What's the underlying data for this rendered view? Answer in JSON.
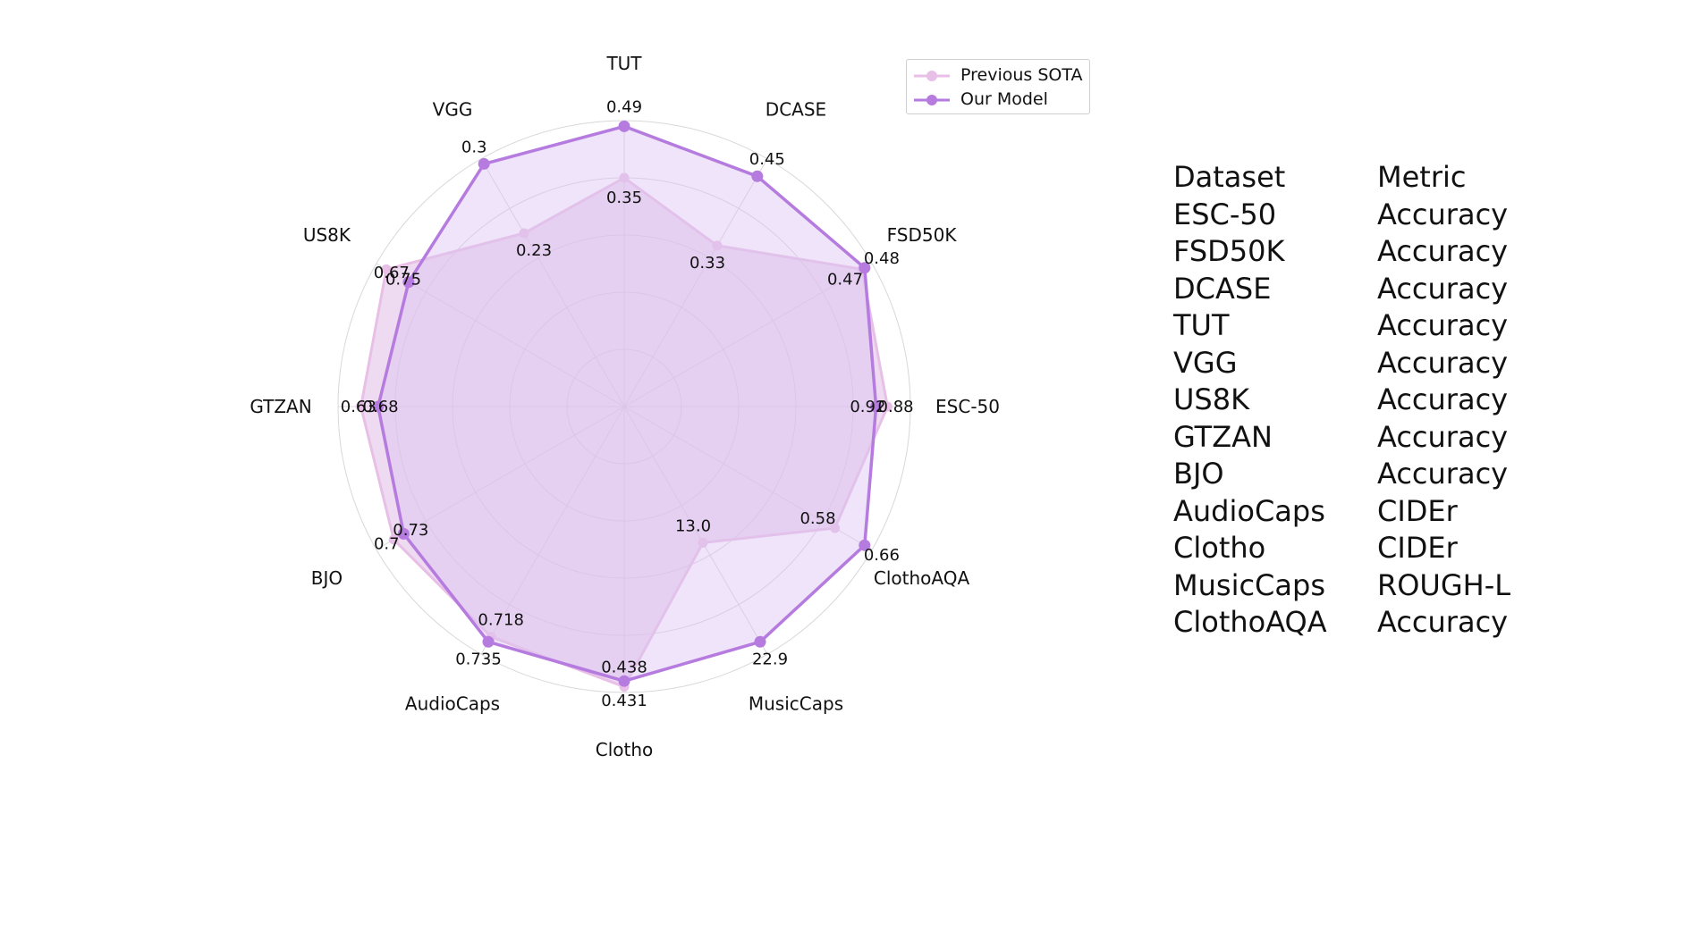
{
  "chart_data": {
    "type": "radar",
    "axes": [
      "ESC-50",
      "FSD50K",
      "DCASE",
      "TUT",
      "VGG",
      "US8K",
      "GTZAN",
      "BJO",
      "AudioCaps",
      "Clotho",
      "MusicCaps",
      "ClothoAQA"
    ],
    "series": [
      {
        "name": "Previous SOTA",
        "color": "#e8bfe6",
        "fill": "#e2bde6",
        "normalized": [
          0.92,
          0.96,
          0.65,
          0.8,
          0.7,
          0.96,
          0.92,
          0.93,
          0.93,
          0.98,
          0.55,
          0.85
        ],
        "labels": [
          "0.92",
          "0.47",
          "0.33",
          "0.35",
          "0.23",
          "0.75",
          "0.68",
          "0.73",
          "0.718",
          "0.438",
          "13.0",
          "0.58"
        ]
      },
      {
        "name": "Our Model",
        "color": "#b57bdf",
        "fill": "#dcc3f2",
        "normalized": [
          0.88,
          0.97,
          0.93,
          0.98,
          0.98,
          0.87,
          0.86,
          0.89,
          0.95,
          0.96,
          0.95,
          0.97
        ],
        "labels": [
          "0.88",
          "0.48",
          "0.45",
          "0.49",
          "0.3",
          "0.67",
          "0.63",
          "0.7",
          "0.735",
          "0.431",
          "22.9",
          "0.66"
        ]
      }
    ],
    "legend_position": "top-right",
    "grid": true
  },
  "table": {
    "headers": [
      "Dataset",
      "Metric"
    ],
    "rows": [
      [
        "ESC-50",
        "Accuracy"
      ],
      [
        "FSD50K",
        "Accuracy"
      ],
      [
        "DCASE",
        "Accuracy"
      ],
      [
        "TUT",
        "Accuracy"
      ],
      [
        "VGG",
        "Accuracy"
      ],
      [
        "US8K",
        "Accuracy"
      ],
      [
        "GTZAN",
        "Accuracy"
      ],
      [
        "BJO",
        "Accuracy"
      ],
      [
        "AudioCaps",
        "CIDEr"
      ],
      [
        "Clotho",
        "CIDEr"
      ],
      [
        "MusicCaps",
        "ROUGH-L"
      ],
      [
        "ClothoAQA",
        "Accuracy"
      ]
    ]
  }
}
